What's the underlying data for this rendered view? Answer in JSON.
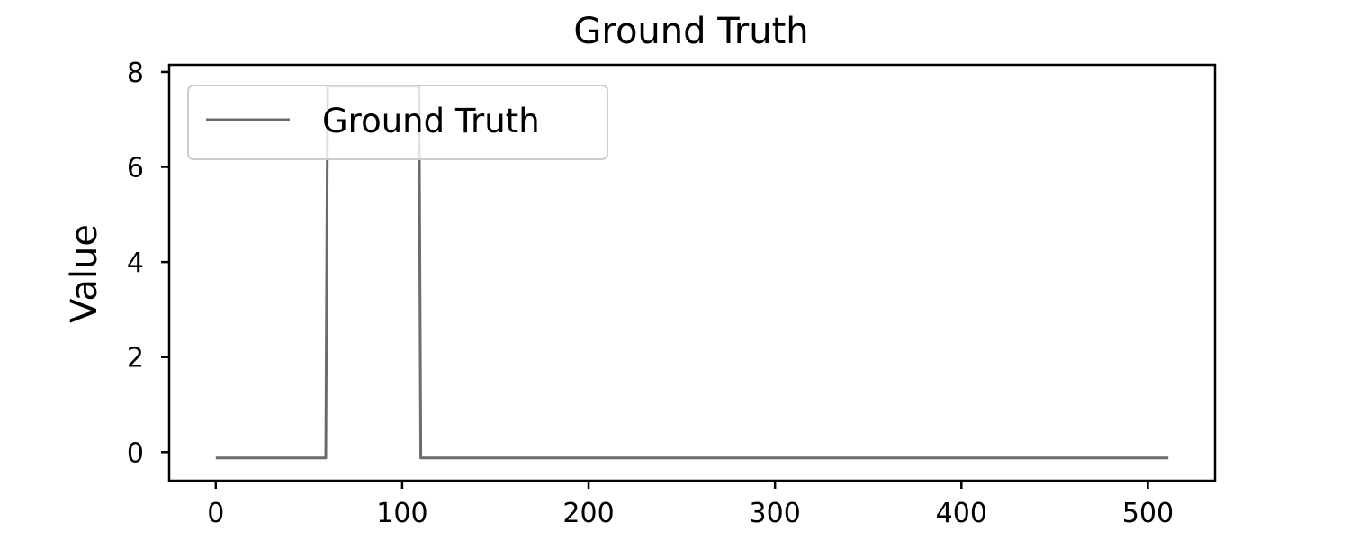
{
  "chart_data": {
    "type": "line",
    "title": "Ground Truth",
    "xlabel": "",
    "ylabel": "Value",
    "xlim": [
      -25,
      536
    ],
    "ylim": [
      -0.6,
      8.15
    ],
    "xticks": [
      0,
      100,
      200,
      300,
      400,
      500
    ],
    "yticks": [
      0,
      2,
      4,
      6,
      8
    ],
    "grid": false,
    "legend_position": "upper-left",
    "series": [
      {
        "name": "Ground Truth",
        "color": "#6b6b6b",
        "x": [
          0,
          59,
          60,
          109,
          110,
          511
        ],
        "y": [
          -0.12,
          -0.12,
          7.7,
          7.7,
          -0.12,
          -0.12
        ]
      }
    ]
  }
}
